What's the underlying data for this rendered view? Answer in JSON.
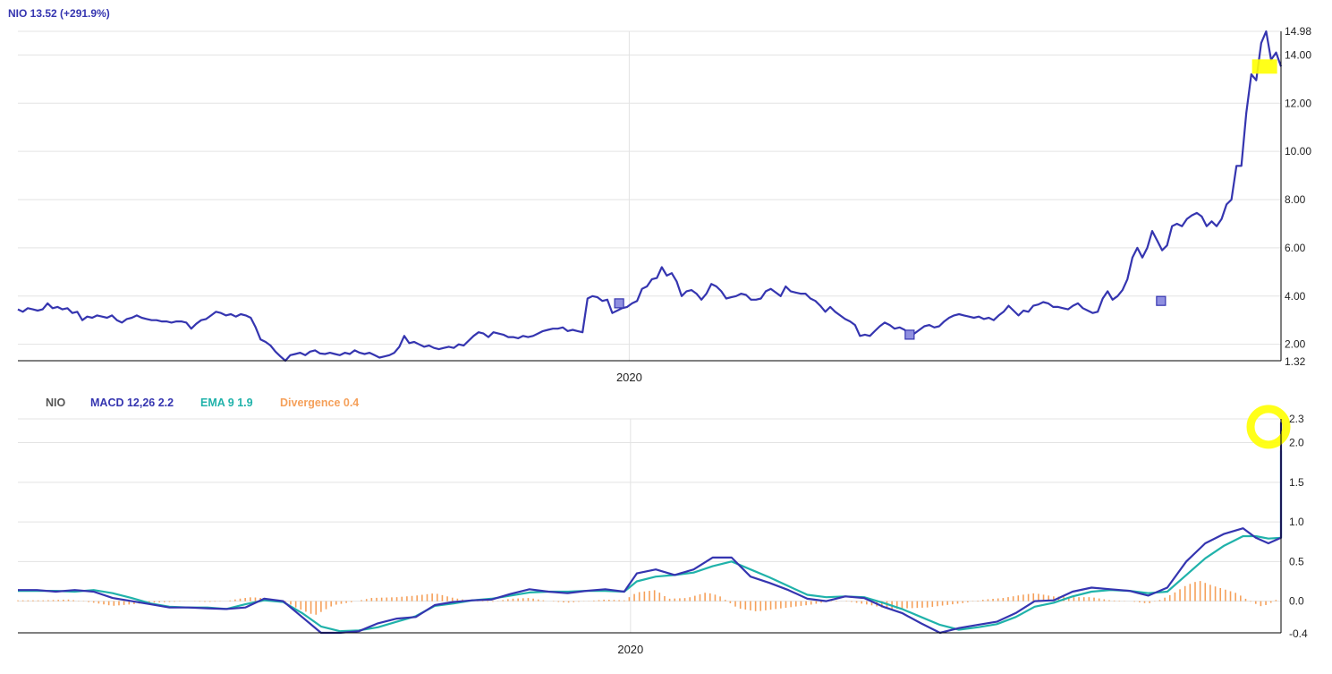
{
  "colors": {
    "price": "#3535b0",
    "macd": "#3535b0",
    "ema": "#20b2aa",
    "divergence": "#f5a05a",
    "highlight": "#ffff00",
    "grid": "#e3e3e3",
    "axis": "#000000",
    "title_gray": "#555555"
  },
  "chart_data": [
    {
      "type": "line",
      "title": "NIO 13.52 (+291.9%)",
      "ylim": [
        1.32,
        14.98
      ],
      "yticks": [
        2,
        4,
        6,
        8,
        10,
        12,
        14
      ],
      "ytick_labels": [
        "2.00",
        "4.00",
        "6.00",
        "8.00",
        "10.00",
        "12.00",
        "14.00"
      ],
      "ymin_label": "1.32",
      "ymax_label": "14.98",
      "x_range": [
        0,
        100
      ],
      "x_labels": [
        {
          "x": 48.4,
          "label": "2020"
        }
      ],
      "grid": true,
      "series": [
        {
          "values": [
            3.45,
            3.35,
            3.5,
            3.45,
            3.4,
            3.45,
            3.7,
            3.5,
            3.55,
            3.45,
            3.5,
            3.3,
            3.35,
            3.0,
            3.15,
            3.1,
            3.2,
            3.15,
            3.1,
            3.2,
            3.0,
            2.9,
            3.05,
            3.1,
            3.2,
            3.1,
            3.05,
            3.0,
            3.0,
            2.95,
            2.95,
            2.9,
            2.95,
            2.95,
            2.9,
            2.65,
            2.85,
            3.0,
            3.05,
            3.2,
            3.35,
            3.3,
            3.2,
            3.25,
            3.15,
            3.25,
            3.2,
            3.1,
            2.7,
            2.2,
            2.1,
            1.95,
            1.7,
            1.5,
            1.32,
            1.55,
            1.6,
            1.65,
            1.55,
            1.7,
            1.75,
            1.62,
            1.6,
            1.65,
            1.6,
            1.55,
            1.65,
            1.6,
            1.75,
            1.65,
            1.6,
            1.65,
            1.55,
            1.45,
            1.5,
            1.55,
            1.65,
            1.9,
            2.35,
            2.05,
            2.1,
            2.0,
            1.9,
            1.95,
            1.85,
            1.8,
            1.85,
            1.9,
            1.85,
            2.0,
            1.95,
            2.15,
            2.35,
            2.5,
            2.45,
            2.3,
            2.5,
            2.45,
            2.4,
            2.3,
            2.3,
            2.25,
            2.35,
            2.3,
            2.35,
            2.45,
            2.55,
            2.6,
            2.65,
            2.65,
            2.7,
            2.55,
            2.6,
            2.55,
            2.5,
            3.9,
            4.0,
            3.95,
            3.8,
            3.85,
            3.3,
            3.4,
            3.5,
            3.55,
            3.7,
            3.8,
            4.3,
            4.4,
            4.7,
            4.75,
            5.2,
            4.85,
            4.95,
            4.6,
            4.0,
            4.2,
            4.25,
            4.1,
            3.85,
            4.1,
            4.5,
            4.4,
            4.2,
            3.9,
            3.95,
            4.0,
            4.1,
            4.05,
            3.85,
            3.85,
            3.9,
            4.2,
            4.3,
            4.15,
            4.0,
            4.4,
            4.2,
            4.15,
            4.1,
            4.1,
            3.9,
            3.8,
            3.6,
            3.35,
            3.55,
            3.35,
            3.2,
            3.05,
            2.95,
            2.8,
            2.35,
            2.4,
            2.35,
            2.55,
            2.75,
            2.9,
            2.8,
            2.65,
            2.7,
            2.6,
            2.4,
            2.45,
            2.6,
            2.75,
            2.8,
            2.7,
            2.75,
            2.95,
            3.1,
            3.2,
            3.25,
            3.2,
            3.15,
            3.1,
            3.15,
            3.05,
            3.1,
            3.0,
            3.2,
            3.35,
            3.6,
            3.4,
            3.2,
            3.4,
            3.35,
            3.6,
            3.65,
            3.75,
            3.7,
            3.55,
            3.55,
            3.5,
            3.45,
            3.6,
            3.7,
            3.5,
            3.4,
            3.3,
            3.35,
            3.9,
            4.2,
            3.85,
            4.0,
            4.25,
            4.7,
            5.6,
            6.0,
            5.6,
            6.0,
            6.7,
            6.3,
            5.9,
            6.1,
            6.9,
            7.0,
            6.9,
            7.2,
            7.35,
            7.45,
            7.3,
            6.9,
            7.1,
            6.9,
            7.2,
            7.8,
            8.0,
            9.4,
            9.4,
            11.6,
            13.2,
            12.95,
            14.5,
            14.98,
            13.8,
            14.1,
            13.52
          ]
        }
      ],
      "markers": [
        {
          "x": 47.6,
          "y": 3.7
        },
        {
          "x": 70.6,
          "y": 2.4
        },
        {
          "x": 90.5,
          "y": 3.8
        }
      ],
      "highlight": {
        "x": 98.7,
        "y": 13.52
      }
    },
    {
      "type": "line",
      "ylim": [
        -0.4,
        2.3
      ],
      "yticks": [
        0,
        0.5,
        1,
        1.5,
        2
      ],
      "ytick_labels": [
        "0.0",
        "0.5",
        "1.0",
        "1.5",
        "2.0"
      ],
      "ymin_label": "-0.4",
      "ymax_label": "2.3",
      "x_range": [
        0,
        100
      ],
      "x_labels": [
        {
          "x": 48.5,
          "label": "2020"
        }
      ],
      "grid": true,
      "legend": [
        "NIO",
        "MACD 12,26 2.2",
        "EMA 9 1.9",
        "Divergence 0.4"
      ],
      "macd": [
        [
          0,
          0.14
        ],
        [
          1.5,
          0.14
        ],
        [
          3,
          0.12
        ],
        [
          4.5,
          0.14
        ],
        [
          6,
          0.12
        ],
        [
          7.5,
          0.04
        ],
        [
          9,
          0
        ],
        [
          10.5,
          -0.04
        ],
        [
          12,
          -0.08
        ],
        [
          13.5,
          -0.08
        ],
        [
          15,
          -0.09
        ],
        [
          16.5,
          -0.1
        ],
        [
          18,
          -0.08
        ],
        [
          19.5,
          0.03
        ],
        [
          21,
          0
        ],
        [
          22.5,
          -0.2
        ],
        [
          24,
          -0.4
        ],
        [
          25.5,
          -0.4
        ],
        [
          27,
          -0.38
        ],
        [
          28.5,
          -0.28
        ],
        [
          30,
          -0.22
        ],
        [
          31.5,
          -0.2
        ],
        [
          33,
          -0.05
        ],
        [
          34.5,
          -0.01
        ],
        [
          36,
          0.01
        ],
        [
          37.5,
          0.02
        ],
        [
          39,
          0.09
        ],
        [
          40.5,
          0.15
        ],
        [
          42,
          0.12
        ],
        [
          43.5,
          0.1
        ],
        [
          45,
          0.13
        ],
        [
          46.5,
          0.15
        ],
        [
          48,
          0.12
        ],
        [
          49,
          0.35
        ],
        [
          50.5,
          0.4
        ],
        [
          52,
          0.33
        ],
        [
          53.5,
          0.4
        ],
        [
          55,
          0.55
        ],
        [
          56.5,
          0.55
        ],
        [
          58,
          0.31
        ],
        [
          59.5,
          0.23
        ],
        [
          61,
          0.14
        ],
        [
          62.5,
          0.03
        ],
        [
          64,
          0
        ],
        [
          65.5,
          0.06
        ],
        [
          67,
          0.04
        ],
        [
          68.5,
          -0.07
        ],
        [
          70,
          -0.15
        ],
        [
          71.5,
          -0.28
        ],
        [
          73,
          -0.4
        ],
        [
          74.5,
          -0.34
        ],
        [
          76,
          -0.3
        ],
        [
          77.5,
          -0.26
        ],
        [
          79,
          -0.15
        ],
        [
          80.5,
          0
        ],
        [
          82,
          0.01
        ],
        [
          83.5,
          0.12
        ],
        [
          85,
          0.17
        ],
        [
          86.5,
          0.15
        ],
        [
          88,
          0.13
        ],
        [
          89.5,
          0.07
        ],
        [
          91,
          0.17
        ],
        [
          92.5,
          0.5
        ],
        [
          94,
          0.73
        ],
        [
          95.5,
          0.85
        ],
        [
          97,
          0.92
        ],
        [
          98,
          0.8
        ],
        [
          99,
          0.73
        ],
        [
          100,
          0.8
        ],
        [
          101,
          0.98
        ],
        [
          102,
          1.49
        ],
        [
          103,
          2.05
        ],
        [
          104,
          2.25
        ],
        [
          105,
          2.2
        ]
      ],
      "ema": [
        [
          0,
          0.13
        ],
        [
          1.5,
          0.13
        ],
        [
          3,
          0.13
        ],
        [
          4.5,
          0.12
        ],
        [
          6,
          0.14
        ],
        [
          7.5,
          0.1
        ],
        [
          9,
          0.04
        ],
        [
          10.5,
          -0.03
        ],
        [
          12,
          -0.07
        ],
        [
          13.5,
          -0.08
        ],
        [
          15,
          -0.08
        ],
        [
          16.5,
          -0.1
        ],
        [
          18,
          -0.04
        ],
        [
          19.5,
          0.01
        ],
        [
          21,
          -0.01
        ],
        [
          22.5,
          -0.15
        ],
        [
          24,
          -0.32
        ],
        [
          25.5,
          -0.38
        ],
        [
          27,
          -0.37
        ],
        [
          28.5,
          -0.33
        ],
        [
          30,
          -0.26
        ],
        [
          31.5,
          -0.19
        ],
        [
          33,
          -0.06
        ],
        [
          34.5,
          -0.03
        ],
        [
          36,
          0.01
        ],
        [
          37.5,
          0.03
        ],
        [
          39,
          0.07
        ],
        [
          40.5,
          0.11
        ],
        [
          42,
          0.12
        ],
        [
          43.5,
          0.12
        ],
        [
          45,
          0.13
        ],
        [
          46.5,
          0.13
        ],
        [
          48,
          0.12
        ],
        [
          49,
          0.25
        ],
        [
          50.5,
          0.31
        ],
        [
          52,
          0.33
        ],
        [
          53.5,
          0.36
        ],
        [
          55,
          0.44
        ],
        [
          56.5,
          0.5
        ],
        [
          58,
          0.4
        ],
        [
          59.5,
          0.3
        ],
        [
          61,
          0.19
        ],
        [
          62.5,
          0.08
        ],
        [
          64,
          0.05
        ],
        [
          65.5,
          0.06
        ],
        [
          67,
          0.05
        ],
        [
          68.5,
          -0.02
        ],
        [
          70,
          -0.1
        ],
        [
          71.5,
          -0.2
        ],
        [
          73,
          -0.3
        ],
        [
          74.5,
          -0.36
        ],
        [
          76,
          -0.33
        ],
        [
          77.5,
          -0.29
        ],
        [
          79,
          -0.2
        ],
        [
          80.5,
          -0.07
        ],
        [
          82,
          -0.02
        ],
        [
          83.5,
          0.06
        ],
        [
          85,
          0.12
        ],
        [
          86.5,
          0.14
        ],
        [
          88,
          0.13
        ],
        [
          89.5,
          0.1
        ],
        [
          91,
          0.12
        ],
        [
          92.5,
          0.33
        ],
        [
          94,
          0.54
        ],
        [
          95.5,
          0.7
        ],
        [
          97,
          0.82
        ],
        [
          98,
          0.82
        ],
        [
          99,
          0.79
        ],
        [
          100,
          0.8
        ],
        [
          101,
          0.96
        ],
        [
          102,
          1.25
        ],
        [
          103,
          1.63
        ],
        [
          104,
          1.85
        ],
        [
          105,
          1.9
        ]
      ],
      "divergence": [
        [
          0,
          0.01
        ],
        [
          2,
          0.01
        ],
        [
          4,
          0.02
        ],
        [
          6,
          -0.02
        ],
        [
          7.5,
          -0.06
        ],
        [
          9,
          -0.04
        ],
        [
          10.5,
          -0.02
        ],
        [
          12,
          -0.01
        ],
        [
          13.5,
          0
        ],
        [
          15,
          -0.01
        ],
        [
          16.5,
          0
        ],
        [
          17.5,
          0.03
        ],
        [
          18.5,
          0.05
        ],
        [
          20,
          0.03
        ],
        [
          21,
          0.01
        ],
        [
          22,
          -0.08
        ],
        [
          23.5,
          -0.18
        ],
        [
          25,
          -0.05
        ],
        [
          26.5,
          -0.01
        ],
        [
          28,
          0.04
        ],
        [
          30,
          0.05
        ],
        [
          31.5,
          0.07
        ],
        [
          33,
          0.1
        ],
        [
          34.5,
          0.04
        ],
        [
          36,
          0
        ],
        [
          37.5,
          -0.01
        ],
        [
          39,
          0.03
        ],
        [
          40.5,
          0.04
        ],
        [
          42,
          0
        ],
        [
          43.5,
          -0.02
        ],
        [
          45,
          0
        ],
        [
          46.5,
          0.02
        ],
        [
          48,
          0.01
        ],
        [
          49,
          0.11
        ],
        [
          50.5,
          0.14
        ],
        [
          51.5,
          0.03
        ],
        [
          53,
          0.04
        ],
        [
          54.5,
          0.11
        ],
        [
          55.5,
          0.07
        ],
        [
          57,
          -0.09
        ],
        [
          58.5,
          -0.13
        ],
        [
          60,
          -0.1
        ],
        [
          61.5,
          -0.07
        ],
        [
          63,
          -0.04
        ],
        [
          64.5,
          0.01
        ],
        [
          66,
          -0.01
        ],
        [
          67.5,
          -0.05
        ],
        [
          69,
          -0.1
        ],
        [
          70.5,
          -0.09
        ],
        [
          72,
          -0.08
        ],
        [
          73.5,
          -0.05
        ],
        [
          75,
          -0.02
        ],
        [
          76.5,
          0.02
        ],
        [
          78,
          0.04
        ],
        [
          79.5,
          0.08
        ],
        [
          80.5,
          0.1
        ],
        [
          82,
          0.06
        ],
        [
          83.5,
          0.05
        ],
        [
          85,
          0.05
        ],
        [
          86.5,
          0.01
        ],
        [
          88,
          0
        ],
        [
          89.5,
          -0.03
        ],
        [
          90.5,
          0.02
        ],
        [
          91.5,
          0.1
        ],
        [
          92.5,
          0.2
        ],
        [
          93.5,
          0.26
        ],
        [
          94.5,
          0.2
        ],
        [
          95.5,
          0.15
        ],
        [
          96.5,
          0.1
        ],
        [
          97.5,
          0.0
        ],
        [
          98.5,
          -0.07
        ],
        [
          99.5,
          0.0
        ],
        [
          100.5,
          0.15
        ],
        [
          101.5,
          0.45
        ],
        [
          102.5,
          0.62
        ],
        [
          103.5,
          0.55
        ],
        [
          104.5,
          0.45
        ],
        [
          105,
          0.35
        ]
      ],
      "highlight": {
        "x": 103.5,
        "y": 2.2
      }
    }
  ]
}
